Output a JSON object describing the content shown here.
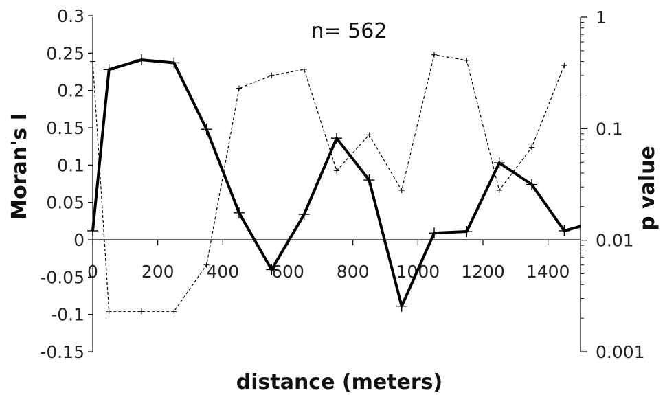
{
  "chart_data": {
    "type": "line",
    "title": "",
    "annotation": "n= 562",
    "xlabel": "distance (meters)",
    "ylabel": "Moran's  I",
    "y2label": "p value",
    "xlim": [
      0,
      1500
    ],
    "ylim": [
      -0.15,
      0.3
    ],
    "y2lim": [
      0.001,
      1
    ],
    "y2scale": "log",
    "xticks": [
      "0",
      "200",
      "400",
      "600",
      "800",
      "1000",
      "1200",
      "1400"
    ],
    "yticks": [
      "0.3",
      "0.25",
      "0.2",
      "0.15",
      "0.1",
      "0.05",
      "0",
      "-0.05",
      "-0.1",
      "-0.15"
    ],
    "y2ticks": [
      "1",
      "0.1",
      "0.01",
      "0.001"
    ],
    "grid": false,
    "series": [
      {
        "axis": "left",
        "style": "solid",
        "color": "#000000",
        "x": [
          0,
          50,
          150,
          250,
          350,
          450,
          550,
          650,
          750,
          850,
          950,
          1050,
          1150,
          1250,
          1350,
          1450,
          1500
        ],
        "values": [
          0.012,
          0.228,
          0.241,
          0.237,
          0.148,
          0.036,
          -0.04,
          0.034,
          0.136,
          0.08,
          -0.089,
          0.009,
          0.011,
          0.103,
          0.074,
          0.012,
          0.018
        ]
      },
      {
        "axis": "right",
        "style": "dashed",
        "color": "#000000",
        "x": [
          0,
          50,
          150,
          250,
          350,
          450,
          550,
          650,
          750,
          850,
          950,
          1050,
          1150,
          1250,
          1350,
          1450
        ],
        "values": [
          0.4,
          0.0023,
          0.0023,
          0.0023,
          0.006,
          0.23,
          0.3,
          0.34,
          0.042,
          0.088,
          0.028,
          0.46,
          0.41,
          0.028,
          0.068,
          0.37
        ]
      }
    ]
  }
}
